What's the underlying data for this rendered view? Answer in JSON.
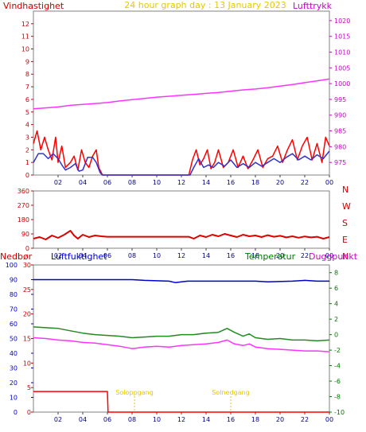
{
  "title": "24 hour graph day : 13 January 2023",
  "colors": {
    "wind": "#ff0000",
    "wind_avg": "#3333cc",
    "pressure": "#ff33ff",
    "direction": "#dd0000",
    "rain": "#ff0000",
    "humidity": "#0000cc",
    "temperature": "#228b22",
    "dewpoint": "#ff33ff",
    "sun": "#e6c800",
    "axis_red": "#cc0000",
    "axis_magenta": "#cc00cc",
    "axis_blue": "#0000cc",
    "axis_green": "#007700",
    "frame": "#808080"
  },
  "chart_data": [
    {
      "type": "line",
      "name_key": "wind_pressure",
      "left_label": "Vindhastighet",
      "right_label": "Lufttrykk",
      "x_ticks": [
        "02",
        "04",
        "06",
        "08",
        "10",
        "12",
        "14",
        "16",
        "18",
        "20",
        "22",
        "00"
      ],
      "xlim": [
        0,
        24
      ],
      "left_ticks": [
        "0",
        "1",
        "2",
        "3",
        "4",
        "5",
        "6",
        "7",
        "8",
        "9",
        "10",
        "11",
        "12"
      ],
      "ylim_left": [
        0,
        13
      ],
      "right_ticks": [
        "975",
        "980",
        "985",
        "990",
        "995",
        "1000",
        "1005",
        "1010",
        "1015",
        "1020"
      ],
      "ylim_right": [
        971,
        1023
      ],
      "series": [
        {
          "label": "wind_gust",
          "axis": "left",
          "points": [
            [
              0,
              2.5
            ],
            [
              0.3,
              3.5
            ],
            [
              0.6,
              2.0
            ],
            [
              0.9,
              3.0
            ],
            [
              1.2,
              2.0
            ],
            [
              1.5,
              1.2
            ],
            [
              1.8,
              3.0
            ],
            [
              2.0,
              1.0
            ],
            [
              2.3,
              2.3
            ],
            [
              2.6,
              0.6
            ],
            [
              3.0,
              1.0
            ],
            [
              3.3,
              1.5
            ],
            [
              3.6,
              0.4
            ],
            [
              3.9,
              2.0
            ],
            [
              4.2,
              1.0
            ],
            [
              4.5,
              0.6
            ],
            [
              4.8,
              1.5
            ],
            [
              5.1,
              2.0
            ],
            [
              5.3,
              0.6
            ],
            [
              5.6,
              0
            ],
            [
              12.6,
              0
            ],
            [
              12.9,
              1.2
            ],
            [
              13.2,
              2.0
            ],
            [
              13.5,
              0.8
            ],
            [
              13.8,
              1.3
            ],
            [
              14.1,
              2.0
            ],
            [
              14.4,
              0.5
            ],
            [
              14.7,
              1.0
            ],
            [
              15.0,
              2.0
            ],
            [
              15.4,
              0.6
            ],
            [
              15.8,
              1.0
            ],
            [
              16.2,
              2.0
            ],
            [
              16.6,
              0.6
            ],
            [
              17.0,
              1.5
            ],
            [
              17.4,
              0.5
            ],
            [
              17.8,
              1.2
            ],
            [
              18.2,
              2.0
            ],
            [
              18.6,
              0.6
            ],
            [
              19.0,
              1.3
            ],
            [
              19.4,
              1.5
            ],
            [
              19.8,
              2.3
            ],
            [
              20.2,
              1.0
            ],
            [
              20.6,
              2.0
            ],
            [
              21.0,
              2.8
            ],
            [
              21.4,
              1.2
            ],
            [
              21.8,
              2.3
            ],
            [
              22.2,
              3.0
            ],
            [
              22.6,
              1.2
            ],
            [
              23.0,
              2.5
            ],
            [
              23.4,
              1.0
            ],
            [
              23.7,
              3.0
            ],
            [
              24,
              2.3
            ]
          ]
        },
        {
          "label": "wind_average",
          "axis": "left",
          "points": [
            [
              0,
              1.0
            ],
            [
              0.4,
              1.7
            ],
            [
              0.8,
              1.7
            ],
            [
              1.2,
              1.3
            ],
            [
              1.6,
              1.7
            ],
            [
              2.0,
              1.3
            ],
            [
              2.3,
              0.8
            ],
            [
              2.6,
              0.4
            ],
            [
              3.0,
              0.6
            ],
            [
              3.4,
              0.9
            ],
            [
              3.7,
              0.3
            ],
            [
              4.0,
              0.4
            ],
            [
              4.4,
              1.4
            ],
            [
              4.8,
              1.4
            ],
            [
              5.1,
              1.0
            ],
            [
              5.4,
              0.2
            ],
            [
              5.6,
              0
            ],
            [
              12.7,
              0
            ],
            [
              13.0,
              0.6
            ],
            [
              13.4,
              1.3
            ],
            [
              13.8,
              0.6
            ],
            [
              14.2,
              0.8
            ],
            [
              14.6,
              0.6
            ],
            [
              15.0,
              1.0
            ],
            [
              15.5,
              0.7
            ],
            [
              16.0,
              1.2
            ],
            [
              16.5,
              0.6
            ],
            [
              17.0,
              0.9
            ],
            [
              17.5,
              0.6
            ],
            [
              18.0,
              1.0
            ],
            [
              18.5,
              0.7
            ],
            [
              19.0,
              1.0
            ],
            [
              19.5,
              1.3
            ],
            [
              20.0,
              1.0
            ],
            [
              20.5,
              1.4
            ],
            [
              21.0,
              1.7
            ],
            [
              21.5,
              1.2
            ],
            [
              22.0,
              1.5
            ],
            [
              22.5,
              1.2
            ],
            [
              23.0,
              1.6
            ],
            [
              23.5,
              1.3
            ],
            [
              24,
              1.9
            ]
          ]
        },
        {
          "label": "pressure",
          "axis": "right",
          "points": [
            [
              0,
              992
            ],
            [
              1,
              992.3
            ],
            [
              2,
              992.6
            ],
            [
              3,
              993.1
            ],
            [
              4,
              993.4
            ],
            [
              5,
              993.7
            ],
            [
              6,
              994
            ],
            [
              7,
              994.5
            ],
            [
              8,
              994.9
            ],
            [
              9,
              995.3
            ],
            [
              10,
              995.7
            ],
            [
              11,
              996.0
            ],
            [
              12,
              996.3
            ],
            [
              13,
              996.6
            ],
            [
              14,
              996.9
            ],
            [
              15,
              997.2
            ],
            [
              16,
              997.6
            ],
            [
              17,
              998.0
            ],
            [
              18,
              998.3
            ],
            [
              19,
              998.7
            ],
            [
              20,
              999.2
            ],
            [
              21,
              999.7
            ],
            [
              22,
              1000.3
            ],
            [
              23,
              1000.9
            ],
            [
              24,
              1001.5
            ]
          ]
        }
      ]
    },
    {
      "type": "line",
      "name_key": "wind_direction",
      "x_ticks": [
        "02",
        "04",
        "06",
        "08",
        "10",
        "12",
        "14",
        "16",
        "18",
        "20",
        "22",
        "00"
      ],
      "xlim": [
        0,
        24
      ],
      "left_ticks": [
        "0",
        "90",
        "180",
        "270",
        "360"
      ],
      "ylim_left": [
        0,
        360
      ],
      "right_compass": [
        "N",
        "W",
        "S",
        "E",
        "N"
      ],
      "series": [
        {
          "label": "direction",
          "axis": "left",
          "points": [
            [
              0,
              60
            ],
            [
              0.5,
              70
            ],
            [
              1,
              55
            ],
            [
              1.5,
              80
            ],
            [
              2,
              65
            ],
            [
              2.5,
              85
            ],
            [
              3,
              110
            ],
            [
              3.3,
              80
            ],
            [
              3.6,
              60
            ],
            [
              4,
              85
            ],
            [
              4.5,
              70
            ],
            [
              5,
              80
            ],
            [
              5.5,
              75
            ],
            [
              6,
              72
            ],
            [
              12.6,
              72
            ],
            [
              13,
              60
            ],
            [
              13.5,
              80
            ],
            [
              14,
              70
            ],
            [
              14.5,
              85
            ],
            [
              15,
              75
            ],
            [
              15.5,
              90
            ],
            [
              16,
              80
            ],
            [
              16.5,
              70
            ],
            [
              17,
              85
            ],
            [
              17.5,
              75
            ],
            [
              18,
              80
            ],
            [
              18.5,
              70
            ],
            [
              19,
              82
            ],
            [
              19.5,
              72
            ],
            [
              20,
              78
            ],
            [
              20.5,
              68
            ],
            [
              21,
              75
            ],
            [
              21.5,
              66
            ],
            [
              22,
              74
            ],
            [
              22.5,
              68
            ],
            [
              23,
              72
            ],
            [
              23.5,
              60
            ],
            [
              24,
              70
            ]
          ]
        }
      ]
    },
    {
      "type": "line",
      "name_key": "rain_hum_temp",
      "left_outer_label": "Nedbør",
      "left_inner_label": "Luftfuktighet",
      "right_inner_label": "Temperatur",
      "right_outer_label": "Duggpunkt",
      "x_ticks": [
        "02",
        "04",
        "06",
        "08",
        "10",
        "12",
        "14",
        "16",
        "18",
        "20",
        "22",
        "00"
      ],
      "xlim": [
        0,
        24
      ],
      "outer_left_ticks": [
        "0",
        "10",
        "20",
        "30",
        "40",
        "50",
        "60",
        "70",
        "80",
        "90",
        "100"
      ],
      "ylim_outer_left": [
        0,
        100
      ],
      "inner_left_ticks": [
        "0",
        "5",
        "10",
        "15",
        "20",
        "25",
        "30"
      ],
      "ylim_inner_left": [
        0,
        30
      ],
      "right_ticks": [
        "-10",
        "-8",
        "-6",
        "-4",
        "-2",
        "0",
        "2",
        "4",
        "6",
        "8"
      ],
      "ylim_right": [
        -10,
        9
      ],
      "sun_labels": [
        {
          "text": "Soloppgang",
          "hour": 8.2
        },
        {
          "text": "Solnedgang",
          "hour": 16.0
        }
      ],
      "series": [
        {
          "label": "humidity",
          "axis": "outer_left",
          "points": [
            [
              0,
              90
            ],
            [
              8,
              90
            ],
            [
              9,
              89.5
            ],
            [
              11,
              89
            ],
            [
              11.5,
              88
            ],
            [
              12,
              88.5
            ],
            [
              12.5,
              89
            ],
            [
              14,
              89
            ],
            [
              16,
              89
            ],
            [
              18,
              89
            ],
            [
              19,
              88.5
            ],
            [
              21,
              89
            ],
            [
              22,
              89.5
            ],
            [
              23,
              89
            ],
            [
              24,
              89
            ]
          ]
        },
        {
          "label": "rain",
          "axis": "inner_left",
          "points": [
            [
              0,
              4.2
            ],
            [
              6.0,
              4.2
            ],
            [
              6.0,
              4.2
            ],
            [
              6.05,
              0
            ],
            [
              24,
              0
            ]
          ]
        },
        {
          "label": "temperature",
          "axis": "right",
          "points": [
            [
              0,
              1.0
            ],
            [
              1,
              0.9
            ],
            [
              2,
              0.8
            ],
            [
              3,
              0.5
            ],
            [
              4,
              0.2
            ],
            [
              5,
              0
            ],
            [
              6,
              -0.1
            ],
            [
              7,
              -0.2
            ],
            [
              8,
              -0.4
            ],
            [
              9,
              -0.3
            ],
            [
              10,
              -0.2
            ],
            [
              11,
              -0.2
            ],
            [
              12,
              0
            ],
            [
              13,
              0
            ],
            [
              14,
              0.2
            ],
            [
              15,
              0.3
            ],
            [
              15.7,
              0.8
            ],
            [
              16.3,
              0.3
            ],
            [
              17,
              -0.2
            ],
            [
              17.5,
              0.1
            ],
            [
              18,
              -0.4
            ],
            [
              19,
              -0.6
            ],
            [
              20,
              -0.5
            ],
            [
              21,
              -0.7
            ],
            [
              22,
              -0.7
            ],
            [
              23,
              -0.8
            ],
            [
              24,
              -0.7
            ]
          ]
        },
        {
          "label": "dewpoint",
          "axis": "right",
          "points": [
            [
              0,
              -0.4
            ],
            [
              1,
              -0.5
            ],
            [
              2,
              -0.7
            ],
            [
              3,
              -0.8
            ],
            [
              4,
              -1.0
            ],
            [
              5,
              -1.1
            ],
            [
              6,
              -1.3
            ],
            [
              7,
              -1.5
            ],
            [
              8,
              -1.8
            ],
            [
              9,
              -1.6
            ],
            [
              10,
              -1.5
            ],
            [
              11,
              -1.6
            ],
            [
              12,
              -1.4
            ],
            [
              13,
              -1.3
            ],
            [
              14,
              -1.2
            ],
            [
              15,
              -1.0
            ],
            [
              15.7,
              -0.7
            ],
            [
              16.3,
              -1.2
            ],
            [
              17,
              -1.4
            ],
            [
              17.5,
              -1.2
            ],
            [
              18,
              -1.6
            ],
            [
              19,
              -1.8
            ],
            [
              20,
              -1.9
            ],
            [
              21,
              -2.0
            ],
            [
              22,
              -2.1
            ],
            [
              23,
              -2.1
            ],
            [
              24,
              -2.2
            ]
          ]
        }
      ]
    }
  ]
}
